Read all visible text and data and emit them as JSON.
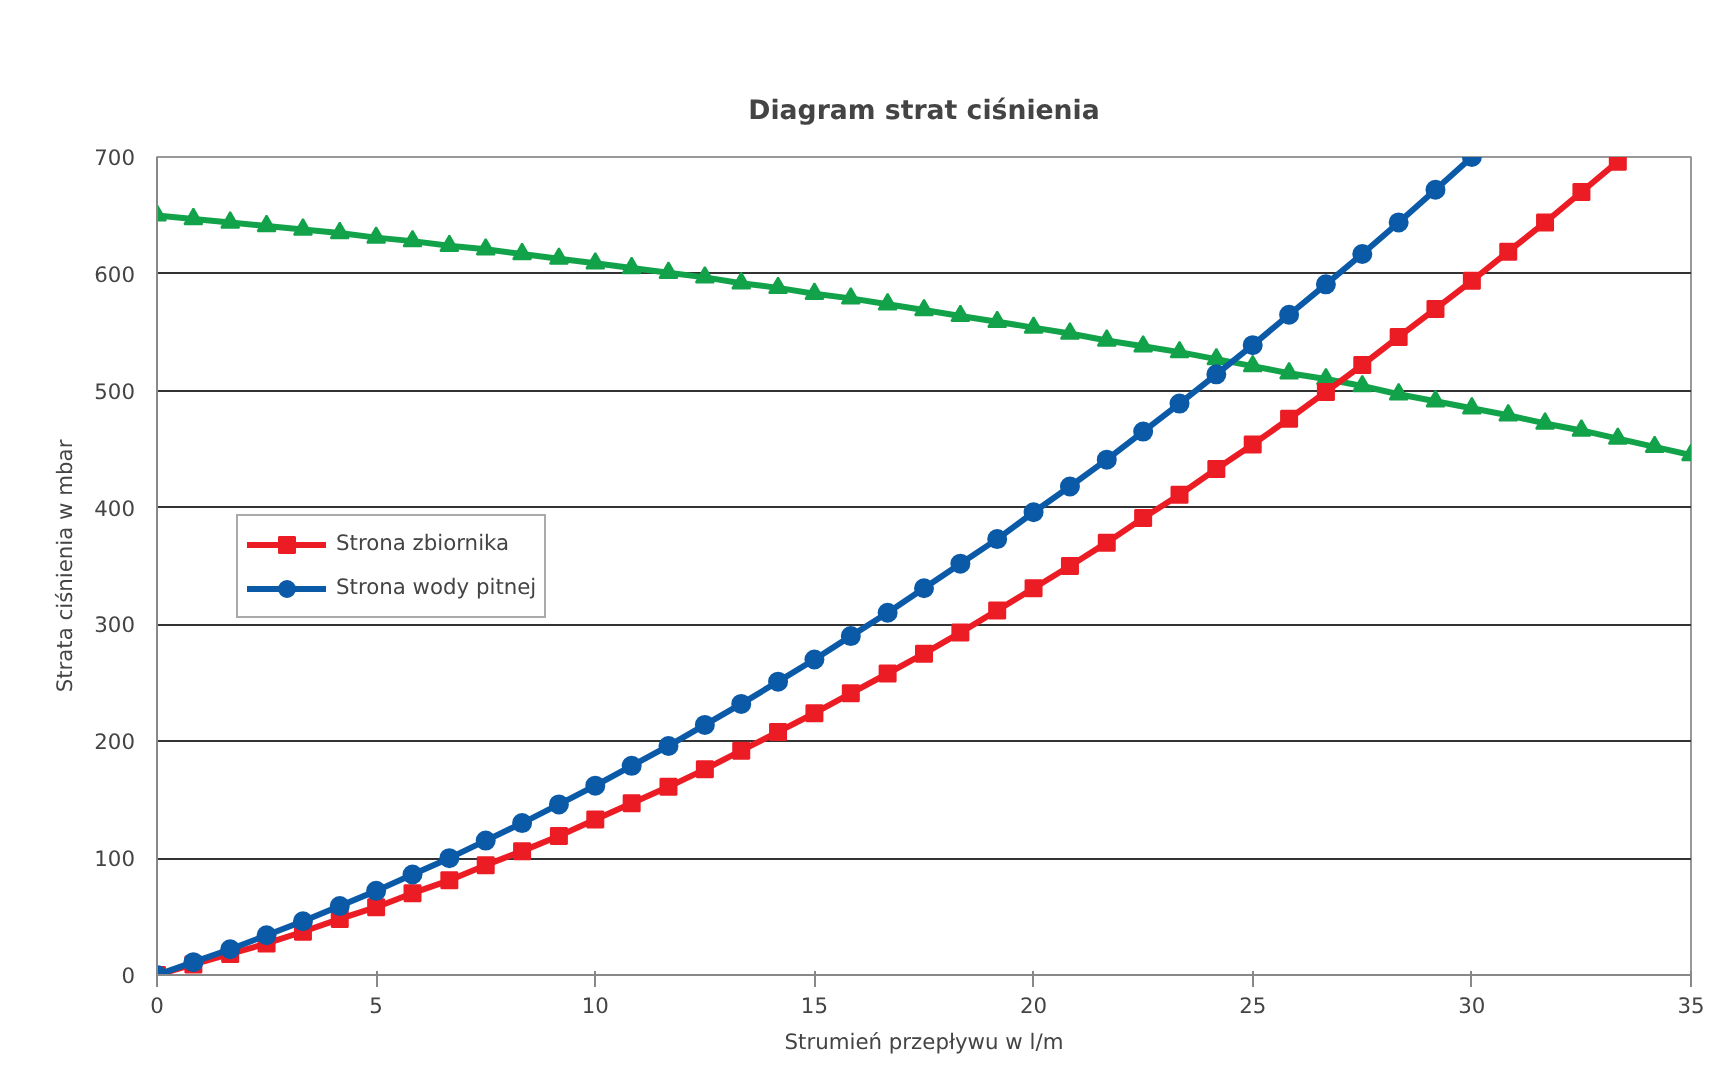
{
  "chart_data": {
    "type": "line",
    "title": "Diagram strat ciśnienia",
    "xlabel": "Strumień przepływu w l/m",
    "ylabel": "Strata ciśnienia w mbar",
    "xlim": [
      0,
      35
    ],
    "ylim": [
      0,
      700
    ],
    "xticks": [
      0,
      5,
      10,
      15,
      20,
      25,
      30,
      35
    ],
    "yticks": [
      0,
      100,
      200,
      300,
      400,
      500,
      600,
      700
    ],
    "grid": "y",
    "legend": "left",
    "line_style": "solid",
    "series": [
      {
        "color": "#12a24a",
        "marker": "triangle",
        "x": [
          0,
          0.83,
          1.67,
          2.5,
          3.33,
          4.17,
          5,
          5.83,
          6.67,
          7.5,
          8.33,
          9.17,
          10,
          10.83,
          11.67,
          12.5,
          13.33,
          14.17,
          15,
          15.83,
          16.67,
          17.5,
          18.33,
          19.17,
          20,
          20.83,
          21.67,
          22.5,
          23.33,
          24.17,
          25,
          25.83,
          26.67,
          27.5,
          28.33,
          29.17,
          30,
          30.83,
          31.67,
          32.5,
          33.33,
          34.17,
          35
        ],
        "values": [
          650,
          647,
          644,
          641,
          638,
          635,
          631,
          628,
          624,
          621,
          617,
          613,
          609,
          605,
          601,
          597,
          592,
          588,
          583,
          579,
          574,
          569,
          564,
          559,
          554,
          549,
          543,
          538,
          533,
          527,
          521,
          515,
          510,
          504,
          497,
          491,
          485,
          479,
          472,
          466,
          459,
          452,
          445
        ]
      },
      {
        "name": "Strona zbiornika",
        "color": "#ec1c24",
        "marker": "square",
        "x": [
          0,
          0.83,
          1.67,
          2.5,
          3.33,
          4.17,
          5,
          5.83,
          6.67,
          7.5,
          8.33,
          9.17,
          10,
          10.83,
          11.67,
          12.5,
          13.33,
          14.17,
          15,
          15.83,
          16.67,
          17.5,
          18.33,
          19.17,
          20,
          20.83,
          21.67,
          22.5,
          23.33,
          24.17,
          25,
          25.83,
          26.67,
          27.5,
          28.33,
          29.17,
          30,
          30.83,
          31.67,
          32.5,
          33.33
        ],
        "values": [
          0,
          9,
          18,
          27,
          37,
          48,
          58,
          70,
          81,
          94,
          106,
          119,
          133,
          147,
          161,
          176,
          192,
          208,
          224,
          241,
          258,
          275,
          293,
          312,
          331,
          350,
          370,
          391,
          411,
          433,
          454,
          476,
          499,
          522,
          546,
          570,
          594,
          619,
          644,
          670,
          696
        ]
      },
      {
        "name": "Strona wody pitnej",
        "color": "#0b5aa8",
        "marker": "circle",
        "x": [
          0,
          0.83,
          1.67,
          2.5,
          3.33,
          4.17,
          5,
          5.83,
          6.67,
          7.5,
          8.33,
          9.17,
          10,
          10.83,
          11.67,
          12.5,
          13.33,
          14.17,
          15,
          15.83,
          16.67,
          17.5,
          18.33,
          19.17,
          20,
          20.83,
          21.67,
          22.5,
          23.33,
          24.17,
          25,
          25.83,
          26.67,
          27.5,
          28.33,
          29.17,
          30
        ],
        "values": [
          0,
          11,
          22,
          34,
          46,
          59,
          72,
          86,
          100,
          115,
          130,
          146,
          162,
          179,
          196,
          214,
          232,
          251,
          270,
          290,
          310,
          331,
          352,
          373,
          396,
          418,
          441,
          465,
          489,
          514,
          539,
          565,
          591,
          617,
          644,
          672,
          700
        ]
      }
    ]
  }
}
